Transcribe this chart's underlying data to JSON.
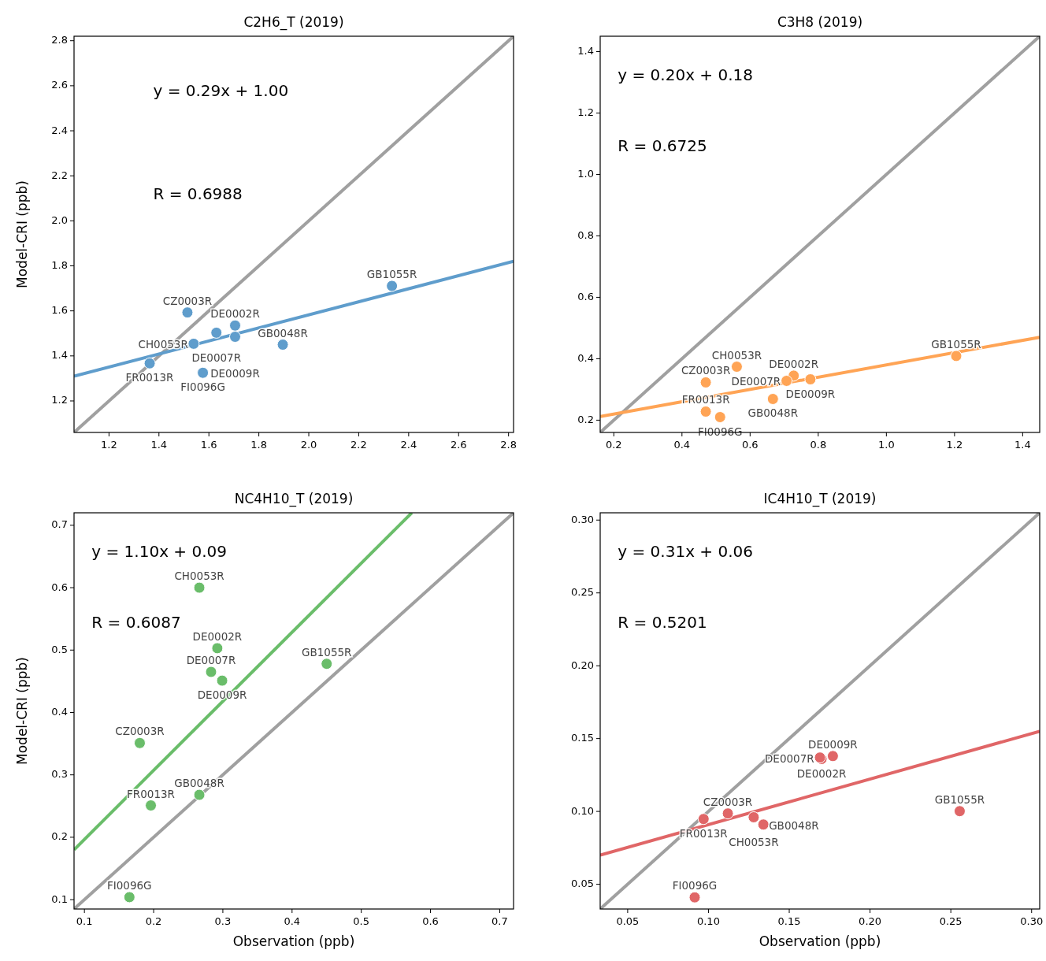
{
  "chart_data": [
    {
      "type": "scatter",
      "title": "C2H6_T (2019)",
      "ylabel": "Model-CRI (ppb)",
      "xlim": [
        1.06,
        2.82
      ],
      "ylim": [
        1.06,
        2.82
      ],
      "xticks": [
        1.2,
        1.4,
        1.6,
        1.8,
        {
          "value": 2.0,
          "label": "2.0"
        },
        2.2,
        2.4,
        2.6,
        2.8
      ],
      "yticks": [
        1.2,
        1.4,
        1.6,
        1.8,
        {
          "value": 2.0,
          "label": "2.0"
        },
        2.2,
        2.4,
        2.6,
        2.8
      ],
      "marker": "circle",
      "series": [
        {
          "type": "line",
          "marker": "none",
          "color": "#a0a0a0",
          "x": [
            1.06,
            2.82
          ],
          "values": [
            1.06,
            2.82
          ]
        },
        {
          "type": "line",
          "marker": "none",
          "color": "#5f9dcc",
          "x": [
            1.06,
            2.82
          ],
          "values": [
            1.31,
            1.82
          ]
        },
        {
          "type": "scatter",
          "color": "#5f9dcc",
          "x": [
            1.514,
            1.705,
            1.63,
            1.705,
            1.539,
            1.896,
            1.363,
            1.576,
            2.333
          ],
          "values": [
            1.593,
            1.535,
            1.503,
            1.485,
            1.454,
            1.45,
            1.367,
            1.325,
            1.711
          ]
        }
      ],
      "annotations": [
        "y = 0.29x + 1.00",
        "R = 0.6988",
        {
          "text": "CZ0003R",
          "x": 1.514,
          "y": 1.593
        },
        {
          "text": "DE0002R",
          "x": 1.705,
          "y": 1.535
        },
        {
          "text": "DE0007R",
          "x": 1.63,
          "y": 1.503
        },
        {
          "text": "DE0009R",
          "x": 1.705,
          "y": 1.485
        },
        {
          "text": "CH0053R",
          "x": 1.539,
          "y": 1.454
        },
        {
          "text": "GB0048R",
          "x": 1.896,
          "y": 1.45
        },
        {
          "text": "FR0013R",
          "x": 1.363,
          "y": 1.367
        },
        {
          "text": "FI0096G",
          "x": 1.576,
          "y": 1.325
        },
        {
          "text": "GB1055R",
          "x": 2.333,
          "y": 1.711
        }
      ]
    },
    {
      "type": "scatter",
      "title": "C3H8 (2019)",
      "xlim": [
        0.16,
        1.45
      ],
      "ylim": [
        0.16,
        1.45
      ],
      "xticks": [
        0.2,
        0.4,
        0.6,
        0.8,
        {
          "value": 1.0,
          "label": "1.0"
        },
        1.2,
        1.4
      ],
      "yticks": [
        0.2,
        0.4,
        0.6,
        0.8,
        {
          "value": 1.0,
          "label": "1.0"
        },
        1.2,
        1.4
      ],
      "marker": "circle",
      "series": [
        {
          "type": "line",
          "marker": "none",
          "color": "#a0a0a0",
          "x": [
            0.16,
            1.45
          ],
          "values": [
            0.16,
            1.45
          ]
        },
        {
          "type": "line",
          "marker": "none",
          "color": "#ffa455",
          "x": [
            0.16,
            1.45
          ],
          "values": [
            0.212,
            0.47
          ]
        },
        {
          "type": "scatter",
          "color": "#ffa455",
          "x": [
            0.47,
            0.561,
            0.728,
            0.707,
            0.777,
            0.667,
            0.47,
            0.512,
            1.205
          ],
          "values": [
            0.323,
            0.374,
            0.345,
            0.328,
            0.333,
            0.269,
            0.228,
            0.21,
            0.409
          ]
        }
      ],
      "annotations": [
        "y = 0.20x + 0.18",
        "R = 0.6725",
        {
          "text": "CZ0003R",
          "x": 0.47,
          "y": 0.323
        },
        {
          "text": "CH0053R",
          "x": 0.561,
          "y": 0.374
        },
        {
          "text": "DE0002R",
          "x": 0.728,
          "y": 0.345
        },
        {
          "text": "DE0007R",
          "x": 0.707,
          "y": 0.328
        },
        {
          "text": "DE0009R",
          "x": 0.777,
          "y": 0.333
        },
        {
          "text": "GB0048R",
          "x": 0.667,
          "y": 0.269
        },
        {
          "text": "FR0013R",
          "x": 0.47,
          "y": 0.228
        },
        {
          "text": "FI0096G",
          "x": 0.512,
          "y": 0.21
        },
        {
          "text": "GB1055R",
          "x": 1.205,
          "y": 0.409
        }
      ]
    },
    {
      "type": "scatter",
      "title": "NC4H10_T (2019)",
      "xlabel": "Observation (ppb)",
      "ylabel": "Model-CRI (ppb)",
      "xlim": [
        0.085,
        0.72
      ],
      "ylim": [
        0.085,
        0.72
      ],
      "xticks": [
        0.1,
        0.2,
        0.3,
        0.4,
        0.5,
        0.6,
        0.7
      ],
      "yticks": [
        0.1,
        0.2,
        0.3,
        0.4,
        0.5,
        0.6,
        0.7
      ],
      "marker": "circle",
      "series": [
        {
          "type": "line",
          "marker": "none",
          "color": "#a0a0a0",
          "x": [
            0.085,
            0.72
          ],
          "values": [
            0.085,
            0.72
          ]
        },
        {
          "type": "line",
          "marker": "none",
          "color": "#6abd6a",
          "x": [
            0.085,
            0.573
          ],
          "values": [
            0.18,
            0.72
          ]
        },
        {
          "type": "scatter",
          "color": "#6abd6a",
          "x": [
            0.266,
            0.292,
            0.283,
            0.299,
            0.45,
            0.18,
            0.196,
            0.266,
            0.165
          ],
          "values": [
            0.6,
            0.503,
            0.465,
            0.451,
            0.478,
            0.351,
            0.251,
            0.268,
            0.104
          ]
        }
      ],
      "annotations": [
        "y = 1.10x + 0.09",
        "R = 0.6087",
        {
          "text": "CH0053R",
          "x": 0.266,
          "y": 0.6
        },
        {
          "text": "DE0002R",
          "x": 0.292,
          "y": 0.503
        },
        {
          "text": "DE0007R",
          "x": 0.283,
          "y": 0.465
        },
        {
          "text": "DE0009R",
          "x": 0.299,
          "y": 0.451
        },
        {
          "text": "GB1055R",
          "x": 0.45,
          "y": 0.478
        },
        {
          "text": "CZ0003R",
          "x": 0.18,
          "y": 0.351
        },
        {
          "text": "FR0013R",
          "x": 0.196,
          "y": 0.251
        },
        {
          "text": "GB0048R",
          "x": 0.266,
          "y": 0.268
        },
        {
          "text": "FI0096G",
          "x": 0.165,
          "y": 0.104
        }
      ]
    },
    {
      "type": "scatter",
      "title": "IC4H10_T (2019)",
      "xlabel": "Observation (ppb)",
      "xlim": [
        0.033,
        0.305
      ],
      "ylim": [
        0.033,
        0.305
      ],
      "xticks": [
        0.05,
        {
          "value": 0.1,
          "label": "0.10"
        },
        0.15,
        {
          "value": 0.2,
          "label": "0.20"
        },
        0.25,
        {
          "value": 0.3,
          "label": "0.30"
        }
      ],
      "yticks": [
        0.05,
        {
          "value": 0.1,
          "label": "0.10"
        },
        0.15,
        {
          "value": 0.2,
          "label": "0.20"
        },
        0.25,
        {
          "value": 0.3,
          "label": "0.30"
        }
      ],
      "marker": "circle",
      "series": [
        {
          "type": "line",
          "marker": "none",
          "color": "#a0a0a0",
          "x": [
            0.033,
            0.305
          ],
          "values": [
            0.033,
            0.305
          ]
        },
        {
          "type": "line",
          "marker": "none",
          "color": "#e06667",
          "x": [
            0.033,
            0.305
          ],
          "values": [
            0.07,
            0.155
          ]
        },
        {
          "type": "scatter",
          "color": "#e06667",
          "x": [
            0.0915,
            0.097,
            0.112,
            0.128,
            0.134,
            0.17,
            0.169,
            0.177,
            0.2555
          ],
          "values": [
            0.041,
            0.0948,
            0.0986,
            0.096,
            0.091,
            0.136,
            0.137,
            0.138,
            0.1002
          ]
        }
      ],
      "annotations": [
        "y = 0.31x + 0.06",
        "R = 0.5201",
        {
          "text": "FI0096G",
          "x": 0.0915,
          "y": 0.041
        },
        {
          "text": "FR0013R",
          "x": 0.097,
          "y": 0.0948
        },
        {
          "text": "CZ0003R",
          "x": 0.112,
          "y": 0.0986
        },
        {
          "text": "CH0053R",
          "x": 0.128,
          "y": 0.096
        },
        {
          "text": "GB0048R",
          "x": 0.134,
          "y": 0.091
        },
        {
          "text": "DE0002R",
          "x": 0.17,
          "y": 0.136
        },
        {
          "text": "DE0007R",
          "x": 0.169,
          "y": 0.137
        },
        {
          "text": "DE0009R",
          "x": 0.177,
          "y": 0.138
        },
        {
          "text": "GB1055R",
          "x": 0.2555,
          "y": 0.1002
        }
      ]
    }
  ]
}
